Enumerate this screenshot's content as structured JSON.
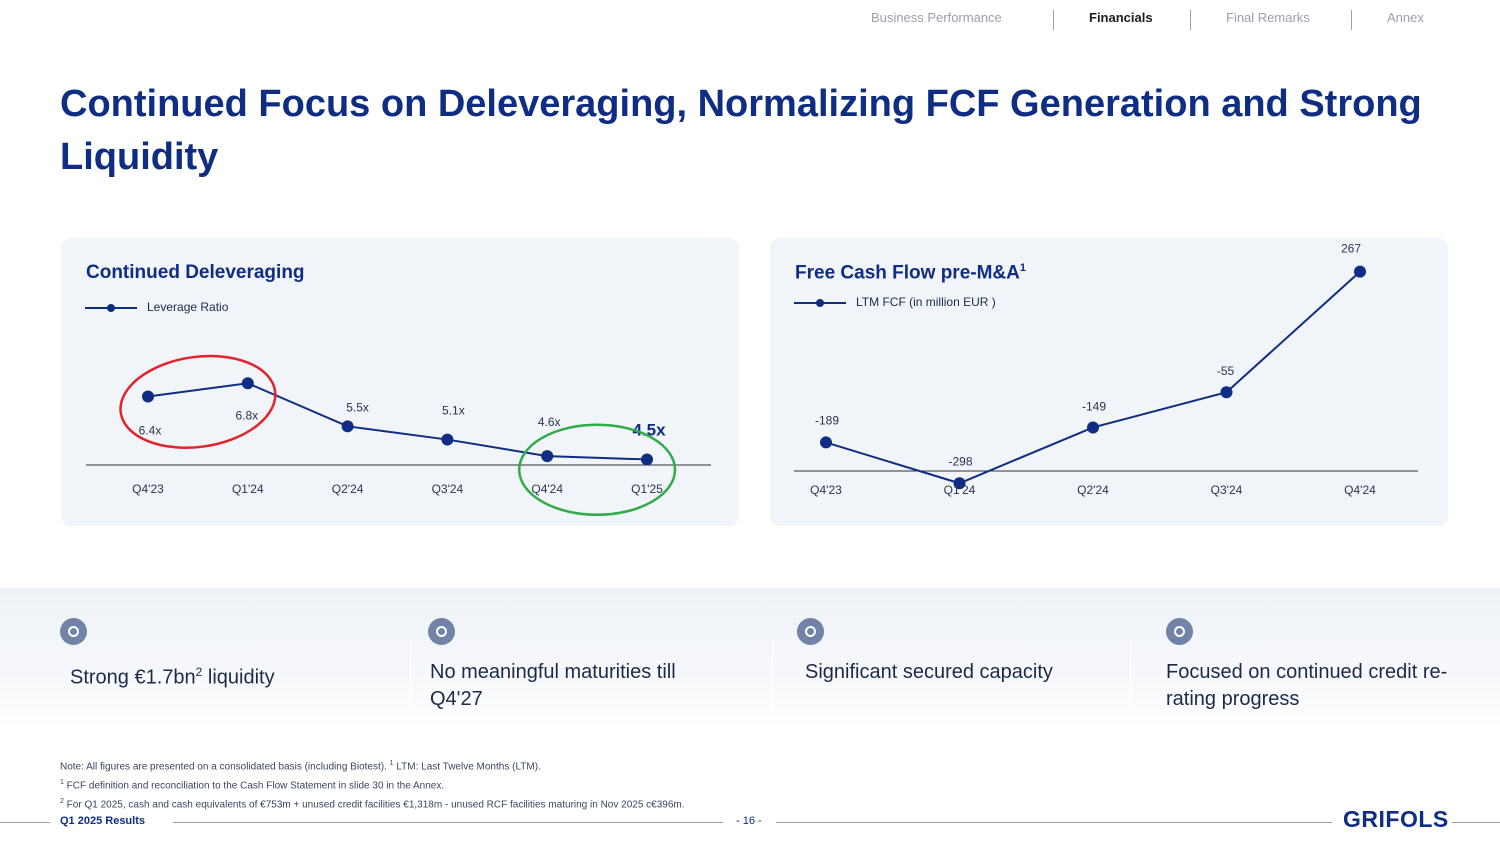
{
  "nav": {
    "items": [
      {
        "label": "Business Performance",
        "active": false
      },
      {
        "label": "Financials",
        "active": true
      },
      {
        "label": "Final Remarks",
        "active": false
      },
      {
        "label": "Annex",
        "active": false
      }
    ]
  },
  "title": "Continued Focus on Deleveraging, Normalizing FCF Generation and Strong Liquidity",
  "panels": {
    "left": {
      "title": "Continued Deleveraging",
      "legend": "Leverage Ratio"
    },
    "right": {
      "title": "Free Cash Flow pre-M&A",
      "title_sup": "1",
      "legend": "LTM FCF (in million EUR )"
    }
  },
  "chart_data": [
    {
      "type": "line",
      "title": "Continued Deleveraging",
      "categories": [
        "Q4'23",
        "Q1'24",
        "Q2'24",
        "Q3'24",
        "Q4'24",
        "Q1'25"
      ],
      "series": [
        {
          "name": "Leverage Ratio",
          "values": [
            6.4,
            6.8,
            5.5,
            5.1,
            4.6,
            4.5
          ]
        }
      ],
      "data_labels": [
        "6.4x",
        "6.8x",
        "5.5x",
        "5.1x",
        "4.6x",
        "4.5x"
      ],
      "annotations": [
        {
          "shape": "ellipse",
          "color": "#e0242a",
          "around": [
            "Q4'23",
            "Q1'24"
          ]
        },
        {
          "shape": "ellipse",
          "color": "#2fab48",
          "around": [
            "Q4'24",
            "Q1'25"
          ]
        }
      ],
      "ylim": [
        4.0,
        7.2
      ],
      "grid": false,
      "legend": "top-left",
      "line_color": "#0e2d83"
    },
    {
      "type": "line",
      "title": "Free Cash Flow pre-M&A",
      "categories": [
        "Q4'23",
        "Q1'24",
        "Q2'24",
        "Q3'24",
        "Q4'24"
      ],
      "series": [
        {
          "name": "LTM FCF (in million EUR )",
          "values": [
            -189,
            -298,
            -149,
            -55,
            267
          ]
        }
      ],
      "data_labels": [
        "-189",
        "-298",
        "-149",
        "-55",
        "267"
      ],
      "ylim": [
        -340,
        330
      ],
      "grid": false,
      "legend": "top-left",
      "line_color": "#0e2d83"
    }
  ],
  "features": [
    {
      "text": "Strong €1.7bn",
      "sup": "2",
      "tail": " liquidity"
    },
    {
      "text": "No meaningful maturities till Q4'27",
      "sup": "",
      "tail": ""
    },
    {
      "text": "Significant secured capacity",
      "sup": "",
      "tail": ""
    },
    {
      "text": "Focused on continued credit re-rating progress",
      "sup": "",
      "tail": ""
    }
  ],
  "notes": [
    {
      "sup": "",
      "text": "Note: All figures are presented on a consolidated basis (including Biotest). ",
      "sup2": "1",
      "text2": " LTM: Last Twelve Months (LTM)."
    },
    {
      "sup": "1",
      "text": " FCF definition and reconciliation to the Cash Flow Statement in slide 30 in the Annex.",
      "sup2": "",
      "text2": ""
    },
    {
      "sup": "2",
      "text": " For Q1 2025, cash and cash equivalents of €753m + unused credit facilities €1,318m - unused RCF facilities maturing in Nov 2025 c€396m.",
      "sup2": "",
      "text2": ""
    }
  ],
  "footer": {
    "left": "Q1 2025 Results",
    "page": "- 16 -",
    "logo": "GRIFOLS"
  },
  "colors": {
    "brand": "#0e2d83",
    "panel_bg": "#f1f4f8",
    "red_highlight": "#e0242a",
    "green_highlight": "#2fab48"
  }
}
